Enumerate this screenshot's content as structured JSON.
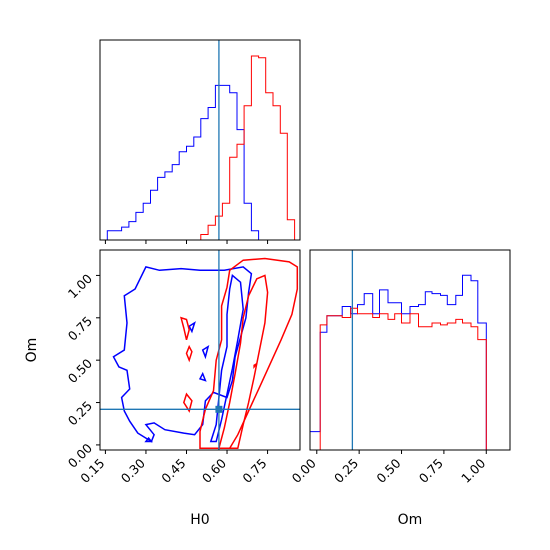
{
  "chart_data": {
    "type": "corner",
    "truth": {
      "H0": 0.57,
      "Om": 0.21
    },
    "colors": {
      "series_a": "#0000ff",
      "series_b": "#ff0000",
      "truth": "#1f77b4"
    },
    "panels": [
      {
        "id": "hist-H0",
        "type": "histogram",
        "xlim": [
          0.13,
          0.87
        ],
        "bin_edges": [
          0.13,
          0.157,
          0.183,
          0.21,
          0.237,
          0.263,
          0.29,
          0.317,
          0.343,
          0.37,
          0.397,
          0.423,
          0.45,
          0.477,
          0.503,
          0.53,
          0.557,
          0.583,
          0.61,
          0.637,
          0.663,
          0.69,
          0.717,
          0.743,
          0.77,
          0.797,
          0.823,
          0.85,
          0.87
        ],
        "series": [
          {
            "color": "#0000ff",
            "counts": [
              0,
              5,
              5,
              7,
              10,
              15,
              20,
              27,
              34,
              37,
              41,
              48,
              51,
              56,
              66,
              72,
              84,
              84,
              80,
              60,
              20,
              5,
              0,
              0,
              0,
              0,
              0,
              0
            ]
          },
          {
            "color": "#ff0000",
            "counts": [
              0,
              0,
              0,
              0,
              0,
              0,
              0,
              0,
              0,
              0,
              0,
              0,
              0,
              0,
              3,
              8,
              13,
              20,
              45,
              52,
              73,
              100,
              99,
              80,
              73,
              58,
              11,
              0
            ]
          }
        ],
        "ymax": 100
      },
      {
        "id": "hist-Om",
        "type": "histogram",
        "xlim": [
          -0.04,
          1.14
        ],
        "xlabel": "Om",
        "xticks": [
          "0.00",
          "0.25",
          "0.50",
          "0.75",
          "1.00"
        ],
        "xtick_values": [
          0,
          0.25,
          0.5,
          0.75,
          1.0
        ],
        "bin_edges": [
          -0.04,
          0.02,
          0.06,
          0.1,
          0.15,
          0.2,
          0.24,
          0.28,
          0.33,
          0.37,
          0.42,
          0.46,
          0.5,
          0.55,
          0.6,
          0.64,
          0.68,
          0.73,
          0.77,
          0.82,
          0.86,
          0.91,
          0.95,
          1.0,
          1.05,
          1.1,
          1.14
        ],
        "series": [
          {
            "color": "#0000ff",
            "counts": [
              10,
              64,
              73,
              73,
              78,
              74,
              79,
              85,
              74,
              87,
              80,
              80,
              74,
              78,
              79,
              86,
              85,
              84,
              79,
              84,
              95,
              92,
              69,
              0,
              0,
              0
            ]
          },
          {
            "color": "#ff0000",
            "counts": [
              0,
              68,
              73,
              73,
              72,
              77,
              74,
              74,
              72,
              74,
              71,
              74,
              69,
              74,
              67,
              67,
              69,
              68,
              69,
              71,
              69,
              67,
              60,
              0,
              0,
              0
            ]
          }
        ],
        "ymax": 100
      },
      {
        "id": "contour-H0-Om",
        "type": "2d-contour",
        "xlim": [
          0.13,
          0.87
        ],
        "ylim": [
          -0.03,
          1.15
        ],
        "xlabel": "H0",
        "ylabel": "Om",
        "xticks": [
          "0.15",
          "0.30",
          "0.45",
          "0.60",
          "0.75"
        ],
        "xtick_values": [
          0.15,
          0.3,
          0.45,
          0.6,
          0.75
        ],
        "yticks": [
          "0.00",
          "0.25",
          "0.50",
          "0.75",
          "1.00"
        ],
        "ytick_values": [
          0,
          0.25,
          0.5,
          0.75,
          1.0
        ],
        "series": [
          {
            "color": "#0000ff",
            "contours": [
              [
                [
                  0.32,
                  0.02
                ],
                [
                  0.33,
                  0.06
                ],
                [
                  0.3,
                  0.12
                ],
                [
                  0.33,
                  0.13
                ],
                [
                  0.37,
                  0.09
                ],
                [
                  0.44,
                  0.07
                ],
                [
                  0.48,
                  0.06
                ],
                [
                  0.51,
                  0.12
                ],
                [
                  0.52,
                  0.26
                ],
                [
                  0.55,
                  0.31
                ],
                [
                  0.6,
                  0.28
                ],
                [
                  0.62,
                  0.38
                ],
                [
                  0.63,
                  0.52
                ],
                [
                  0.67,
                  0.75
                ],
                [
                  0.68,
                  0.9
                ],
                [
                  0.69,
                  1.01
                ],
                [
                  0.66,
                  1.05
                ],
                [
                  0.59,
                  1.03
                ],
                [
                  0.5,
                  1.03
                ],
                [
                  0.43,
                  1.04
                ],
                [
                  0.35,
                  1.03
                ],
                [
                  0.3,
                  1.05
                ],
                [
                  0.26,
                  0.92
                ],
                [
                  0.22,
                  0.88
                ],
                [
                  0.23,
                  0.72
                ],
                [
                  0.22,
                  0.56
                ],
                [
                  0.18,
                  0.52
                ],
                [
                  0.2,
                  0.46
                ],
                [
                  0.23,
                  0.44
                ],
                [
                  0.24,
                  0.33
                ],
                [
                  0.21,
                  0.28
                ],
                [
                  0.22,
                  0.2
                ],
                [
                  0.24,
                  0.14
                ],
                [
                  0.27,
                  0.07
                ],
                [
                  0.32,
                  0.02
                ]
              ],
              [
                [
                  0.54,
                  0.02
                ],
                [
                  0.56,
                  0.12
                ],
                [
                  0.57,
                  0.28
                ],
                [
                  0.58,
                  0.44
                ],
                [
                  0.6,
                  0.58
                ],
                [
                  0.6,
                  0.77
                ],
                [
                  0.61,
                  0.92
                ],
                [
                  0.62,
                  1.0
                ],
                [
                  0.65,
                  0.96
                ],
                [
                  0.66,
                  0.8
                ],
                [
                  0.64,
                  0.62
                ],
                [
                  0.62,
                  0.45
                ],
                [
                  0.6,
                  0.3
                ],
                [
                  0.58,
                  0.15
                ],
                [
                  0.56,
                  0.02
                ],
                [
                  0.54,
                  0.02
                ]
              ],
              [
                [
                  0.51,
                  0.56
                ],
                [
                  0.53,
                  0.58
                ],
                [
                  0.52,
                  0.52
                ],
                [
                  0.51,
                  0.56
                ]
              ],
              [
                [
                  0.5,
                  0.39
                ],
                [
                  0.51,
                  0.42
                ],
                [
                  0.52,
                  0.38
                ],
                [
                  0.5,
                  0.39
                ]
              ],
              [
                [
                  0.46,
                  0.7
                ],
                [
                  0.48,
                  0.72
                ],
                [
                  0.47,
                  0.67
                ],
                [
                  0.46,
                  0.7
                ]
              ],
              [
                [
                  0.3,
                  0.02
                ],
                [
                  0.31,
                  0.04
                ],
                [
                  0.32,
                  0.02
                ],
                [
                  0.3,
                  0.02
                ]
              ]
            ]
          },
          {
            "color": "#ff0000",
            "contours": [
              [
                [
                  0.5,
                  -0.02
                ],
                [
                  0.5,
                  0.08
                ],
                [
                  0.52,
                  0.21
                ],
                [
                  0.55,
                  0.32
                ],
                [
                  0.56,
                  0.5
                ],
                [
                  0.58,
                  0.62
                ],
                [
                  0.58,
                  0.82
                ],
                [
                  0.6,
                  0.93
                ],
                [
                  0.61,
                  1.03
                ],
                [
                  0.66,
                  1.09
                ],
                [
                  0.74,
                  1.1
                ],
                [
                  0.83,
                  1.08
                ],
                [
                  0.86,
                  1.05
                ],
                [
                  0.86,
                  0.92
                ],
                [
                  0.84,
                  0.77
                ],
                [
                  0.8,
                  0.62
                ],
                [
                  0.76,
                  0.48
                ],
                [
                  0.72,
                  0.34
                ],
                [
                  0.68,
                  0.2
                ],
                [
                  0.64,
                  0.06
                ],
                [
                  0.61,
                  -0.02
                ],
                [
                  0.5,
                  -0.02
                ]
              ],
              [
                [
                  0.57,
                  -0.02
                ],
                [
                  0.59,
                  0.1
                ],
                [
                  0.61,
                  0.25
                ],
                [
                  0.63,
                  0.42
                ],
                [
                  0.65,
                  0.6
                ],
                [
                  0.66,
                  0.75
                ],
                [
                  0.68,
                  0.88
                ],
                [
                  0.71,
                  0.98
                ],
                [
                  0.74,
                  1.0
                ],
                [
                  0.75,
                  0.9
                ],
                [
                  0.74,
                  0.72
                ],
                [
                  0.72,
                  0.56
                ],
                [
                  0.7,
                  0.4
                ],
                [
                  0.68,
                  0.25
                ],
                [
                  0.66,
                  0.12
                ],
                [
                  0.64,
                  -0.02
                ],
                [
                  0.57,
                  -0.02
                ]
              ],
              [
                [
                  0.45,
                  0.62
                ],
                [
                  0.46,
                  0.68
                ],
                [
                  0.45,
                  0.74
                ],
                [
                  0.43,
                  0.75
                ],
                [
                  0.44,
                  0.69
                ],
                [
                  0.45,
                  0.62
                ]
              ],
              [
                [
                  0.46,
                  0.5
                ],
                [
                  0.47,
                  0.55
                ],
                [
                  0.46,
                  0.58
                ],
                [
                  0.45,
                  0.54
                ],
                [
                  0.46,
                  0.5
                ]
              ],
              [
                [
                  0.46,
                  0.2
                ],
                [
                  0.47,
                  0.26
                ],
                [
                  0.45,
                  0.3
                ],
                [
                  0.44,
                  0.25
                ],
                [
                  0.46,
                  0.2
                ]
              ],
              [
                [
                  0.7,
                  0.46
                ],
                [
                  0.71,
                  0.48
                ],
                [
                  0.7,
                  0.47
                ],
                [
                  0.7,
                  0.46
                ]
              ]
            ]
          }
        ]
      }
    ]
  }
}
